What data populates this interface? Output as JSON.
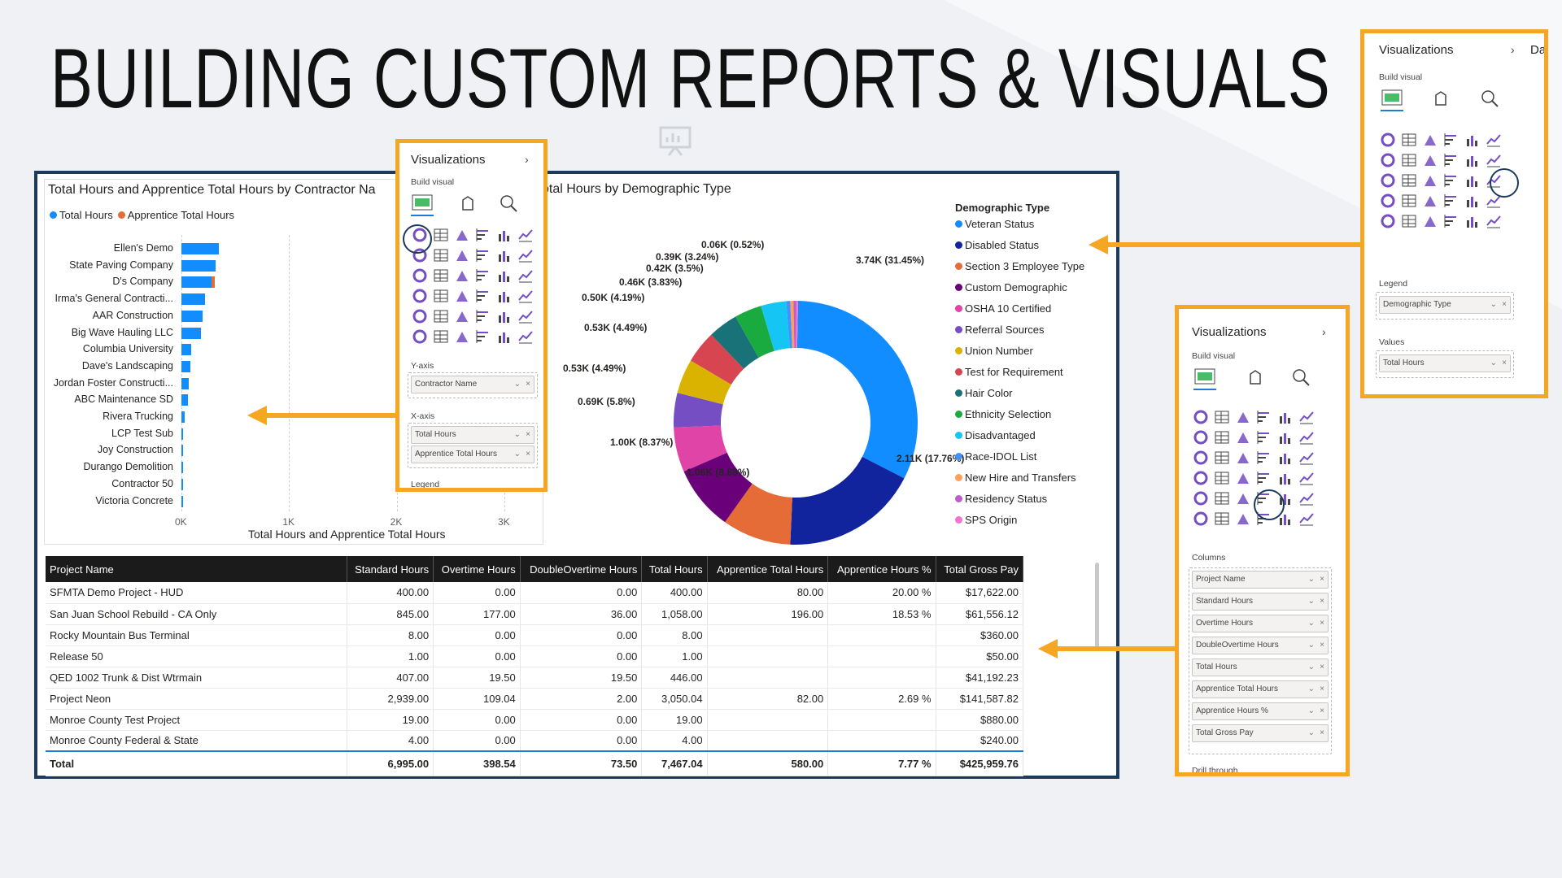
{
  "slide_title": "BUILDING CUSTOM REPORTS & VISUALS",
  "bar_visual": {
    "title": "Total Hours and Apprentice Total Hours by Contractor Na",
    "legend": [
      {
        "name": "Total Hours",
        "color": "#118dff"
      },
      {
        "name": "Apprentice Total Hours",
        "color": "#e66c37"
      }
    ],
    "x_ticks": [
      "0K",
      "1K",
      "2K",
      "3K"
    ],
    "x_title": "Total Hours and Apprentice Total Hours"
  },
  "chart_data": [
    {
      "type": "bar",
      "orientation": "horizontal",
      "title": "Total Hours and Apprentice Total Hours by Contractor Na",
      "xlabel": "Total Hours and Apprentice Total Hours",
      "xlim": [
        0,
        3000
      ],
      "categories": [
        "Ellen's Demo",
        "State Paving Company",
        "D's Company",
        "Irma's General Contracti...",
        "AAR Construction",
        "Big Wave Hauling LLC",
        "Columbia University",
        "Dave's Landscaping",
        "Jordan Foster Constructi...",
        "ABC Maintenance SD",
        "Rivera Trucking",
        "LCP Test Sub",
        "Joy Construction",
        "Durango Demolition",
        "Contractor 50",
        "Victoria Concrete"
      ],
      "series": [
        {
          "name": "Total Hours",
          "values": [
            350,
            320,
            280,
            220,
            200,
            180,
            90,
            80,
            70,
            60,
            30,
            15,
            12,
            10,
            5,
            3
          ]
        },
        {
          "name": "Apprentice Total Hours",
          "values": [
            0,
            0,
            30,
            0,
            0,
            0,
            0,
            0,
            0,
            0,
            0,
            0,
            0,
            0,
            0,
            0
          ]
        }
      ]
    },
    {
      "type": "pie",
      "subtype": "donut",
      "title": "Total Hours by Demographic Type",
      "legend_title": "Demographic Type",
      "slices": [
        {
          "name": "Veteran Status",
          "value": 3740,
          "label": "3.74K (31.45%)",
          "color": "#118dff"
        },
        {
          "name": "Disabled Status",
          "value": 2110,
          "label": "2.11K (17.76%)",
          "color": "#12239e"
        },
        {
          "name": "Section 3 Employee Type",
          "value": 1060,
          "label": "1.06K (8.88%)",
          "color": "#e66c37"
        },
        {
          "name": "Custom Demographic",
          "value": 1000,
          "label": "1.00K (8.37%)",
          "color": "#6b007b"
        },
        {
          "name": "OSHA 10 Certified",
          "value": 690,
          "label": "0.69K (5.8%)",
          "color": "#e044a7"
        },
        {
          "name": "Referral Sources",
          "value": 530,
          "label": "0.53K (4.49%)",
          "color": "#744ec2"
        },
        {
          "name": "Union Number",
          "value": 530,
          "label": "0.53K (4.49%)",
          "color": "#d9b300"
        },
        {
          "name": "Test for Requirement",
          "value": 500,
          "label": "0.50K (4.19%)",
          "color": "#d64550"
        },
        {
          "name": "Hair Color",
          "value": 460,
          "label": "0.46K (3.83%)",
          "color": "#197278"
        },
        {
          "name": "Ethnicity Selection",
          "value": 420,
          "label": "0.42K (3.5%)",
          "color": "#1aab40"
        },
        {
          "name": "Disadvantaged",
          "value": 390,
          "label": "0.39K (3.24%)",
          "color": "#15c6f4"
        },
        {
          "name": "Race-IDOL List",
          "value": 60,
          "label": "0.06K (0.52%)",
          "color": "#4092ff"
        },
        {
          "name": "New Hire and Transfers",
          "value": 50,
          "label": "",
          "color": "#ffa058"
        },
        {
          "name": "Residency Status",
          "value": 40,
          "label": "",
          "color": "#be5dc9"
        },
        {
          "name": "SPS Origin",
          "value": 30,
          "label": "",
          "color": "#f472d0"
        }
      ]
    }
  ],
  "table": {
    "columns": [
      "Project Name",
      "Standard Hours",
      "Overtime Hours",
      "DoubleOvertime Hours",
      "Total Hours",
      "Apprentice Total Hours",
      "Apprentice Hours %",
      "Total Gross Pay"
    ],
    "rows": [
      [
        "SFMTA Demo Project - HUD",
        "400.00",
        "0.00",
        "0.00",
        "400.00",
        "80.00",
        "20.00 %",
        "$17,622.00"
      ],
      [
        "San Juan School Rebuild - CA Only",
        "845.00",
        "177.00",
        "36.00",
        "1,058.00",
        "196.00",
        "18.53 %",
        "$61,556.12"
      ],
      [
        "Rocky Mountain Bus Terminal",
        "8.00",
        "0.00",
        "0.00",
        "8.00",
        "",
        "",
        "$360.00"
      ],
      [
        "Release 50",
        "1.00",
        "0.00",
        "0.00",
        "1.00",
        "",
        "",
        "$50.00"
      ],
      [
        "QED 1002 Trunk & Dist Wtrmain",
        "407.00",
        "19.50",
        "19.50",
        "446.00",
        "",
        "",
        "$41,192.23"
      ],
      [
        "Project Neon",
        "2,939.00",
        "109.04",
        "2.00",
        "3,050.04",
        "82.00",
        "2.69 %",
        "$141,587.82"
      ],
      [
        "Monroe County Test Project",
        "19.00",
        "0.00",
        "0.00",
        "19.00",
        "",
        "",
        "$880.00"
      ],
      [
        "Monroe County Federal & State",
        "4.00",
        "0.00",
        "0.00",
        "4.00",
        "",
        "",
        "$240.00"
      ]
    ],
    "total": [
      "Total",
      "6,995.00",
      "398.54",
      "73.50",
      "7,467.04",
      "580.00",
      "7.77 %",
      "$425,959.76"
    ]
  },
  "panel_bar": {
    "title": "Visualizations",
    "build_visual": "Build visual",
    "sections": {
      "y": "Y-axis",
      "x": "X-axis",
      "legend": "Legend"
    },
    "y_fields": [
      "Contractor Name"
    ],
    "x_fields": [
      "Total Hours",
      "Apprentice Total Hours"
    ]
  },
  "panel_donut": {
    "title": "Visualizations",
    "cut_label": "Da",
    "build_visual": "Build visual",
    "sections": {
      "legend": "Legend",
      "values": "Values"
    },
    "legend_fields": [
      "Demographic Type"
    ],
    "value_fields": [
      "Total Hours"
    ]
  },
  "panel_table": {
    "title": "Visualizations",
    "build_visual": "Build visual",
    "sections": {
      "columns": "Columns",
      "drill": "Drill through"
    },
    "column_fields": [
      "Project Name",
      "Standard Hours",
      "Overtime Hours",
      "DoubleOvertime Hours",
      "Total Hours",
      "Apprentice Total Hours",
      "Apprentice Hours %",
      "Total Gross Pay"
    ]
  }
}
